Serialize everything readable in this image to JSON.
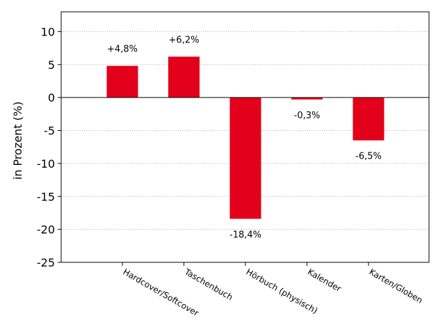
{
  "chart_data": {
    "type": "bar",
    "title": "",
    "xlabel": "",
    "ylabel": "in Prozent (%)",
    "categories": [
      "Hardcover/Softcover",
      "Taschenbuch",
      "Hörbuch (physisch)",
      "Kalender",
      "Karten/Globen"
    ],
    "values": [
      4.8,
      6.2,
      -18.4,
      -0.3,
      -6.5
    ],
    "data_labels": [
      "+4,8%",
      "+6,2%",
      "-18,4%",
      "-0,3%",
      "-6,5%"
    ],
    "ylim": [
      -25,
      13
    ],
    "yticks": [
      10,
      5,
      0,
      -5,
      -10,
      -15,
      -20,
      -25
    ],
    "ytick_labels": [
      "10",
      "5",
      "0",
      "-5",
      "-10",
      "-15",
      "-20",
      "-25"
    ],
    "grid": "horizontal-dotted",
    "bar_color": "#e2001a"
  }
}
